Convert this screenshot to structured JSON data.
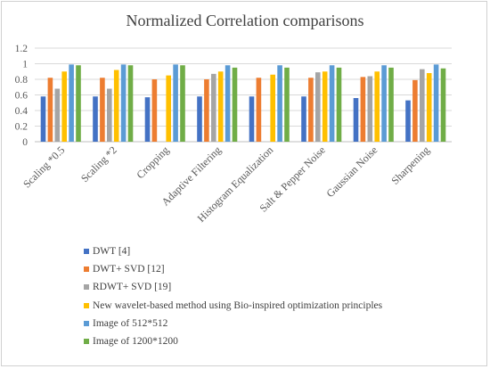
{
  "chart_data": {
    "type": "bar",
    "title": "Normalized Correlation comparisons",
    "xlabel": "",
    "ylabel": "",
    "ylim": [
      0,
      1.2
    ],
    "yticks": [
      "0",
      "0.2",
      "0.4",
      "0.6",
      "0.8",
      "1",
      "1.2"
    ],
    "grid": true,
    "legend_position": "bottom",
    "categories": [
      "Scaling *0.5",
      "Scaling *2",
      "Cropping",
      "Adaptive Filtering",
      "Histogram Equalization",
      "Salt & Pepper Noise",
      "Gaussian Noise",
      "Sharpening"
    ],
    "series": [
      {
        "name": "DWT [4]",
        "color": "#4472C4",
        "values": [
          0.58,
          0.58,
          0.57,
          0.58,
          0.58,
          0.58,
          0.56,
          0.53
        ]
      },
      {
        "name": "DWT+ SVD [12]",
        "color": "#ED7D31",
        "values": [
          0.82,
          0.82,
          0.8,
          0.8,
          0.82,
          0.82,
          0.83,
          0.79
        ]
      },
      {
        "name": "RDWT+ SVD [19]",
        "color": "#A5A5A5",
        "values": [
          0.68,
          0.68,
          null,
          0.87,
          null,
          0.89,
          0.84,
          0.93
        ]
      },
      {
        "name": "New wavelet-based method using Bio-inspired optimization principles",
        "color": "#FFC000",
        "values": [
          0.9,
          0.92,
          0.85,
          0.9,
          0.86,
          0.9,
          0.9,
          0.88
        ]
      },
      {
        "name": "Image of 512*512",
        "color": "#5B9BD5",
        "values": [
          0.99,
          0.99,
          0.99,
          0.98,
          0.98,
          0.98,
          0.98,
          0.99
        ]
      },
      {
        "name": "Image of 1200*1200",
        "color": "#70AD47",
        "values": [
          0.98,
          0.98,
          0.98,
          0.95,
          0.95,
          0.95,
          0.95,
          0.94
        ]
      }
    ]
  }
}
